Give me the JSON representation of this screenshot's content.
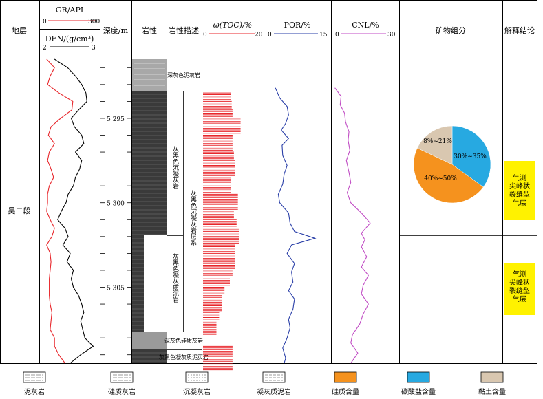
{
  "headers": {
    "formation": "地层",
    "gr_label": "GR/API",
    "gr_min": "0",
    "gr_max": "300",
    "den_label": "DEN/(g/cm³)",
    "den_min": "2",
    "den_max": "3",
    "depth": "深度/m",
    "lithology": "岩性",
    "description": "岩性描述",
    "toc_label": "ω(TOC)/%",
    "toc_min": "0",
    "toc_max": "20",
    "por_label": "POR/%",
    "por_min": "0",
    "por_max": "15",
    "cnl_label": "CNL/%",
    "cnl_min": "0",
    "cnl_max": "30",
    "mineral": "矿物组分",
    "conclusion": "解释结论"
  },
  "formation_name": "吴二段",
  "depth_ticks": [
    "5 295",
    "5 300",
    "5 305"
  ],
  "descriptions": {
    "d1": "深灰色泥灰岩",
    "d2": "灰黑色沉凝灰岩",
    "d3": "灰黑色凝灰质泥岩",
    "d4": "深灰色硅质灰岩",
    "d5": "灰黑色凝灰质泥页岩",
    "series": "灰黑色沉凝灰岩层系"
  },
  "conclusions": [
    "气测尖峰状裂缝型气层",
    "气测尖峰状裂缝型气层"
  ],
  "legend": [
    "泥灰岩",
    "硅质灰岩",
    "沉凝灰岩",
    "凝灰质泥岩",
    "硅质含量",
    "碳酸盐含量",
    "黏土含量"
  ],
  "colors": {
    "gr": "#e8262b",
    "den": "#000000",
    "toc": "#e8262b",
    "por": "#2a3fa8",
    "cnl": "#c04bc4",
    "silica": "#f5921e",
    "carbonate": "#27a9e1",
    "clay": "#d9c7b0",
    "conclusion": "#fff200"
  },
  "chart_data": {
    "type": "line",
    "depth_range": [
      5291.5,
      5309.5
    ],
    "gr": {
      "name": "GR/API",
      "range": [
        0,
        300
      ],
      "depth": [
        5291.5,
        5292,
        5292.5,
        5293,
        5293.5,
        5294,
        5294.5,
        5295,
        5295.5,
        5296,
        5296.5,
        5297,
        5297.5,
        5298,
        5298.5,
        5299,
        5299.5,
        5300,
        5300.5,
        5301,
        5301.5,
        5302,
        5302.5,
        5303,
        5303.5,
        5304,
        5304.5,
        5305,
        5305.5,
        5306,
        5306.5,
        5307,
        5307.5,
        5308,
        5308.5,
        5309,
        5309.5
      ],
      "values": [
        15,
        60,
        35,
        20,
        85,
        165,
        160,
        95,
        40,
        25,
        60,
        30,
        20,
        40,
        55,
        30,
        20,
        20,
        15,
        35,
        60,
        45,
        15,
        35,
        40,
        35,
        30,
        30,
        30,
        35,
        45,
        40,
        35,
        60,
        60,
        85,
        120
      ]
    },
    "den": {
      "name": "DEN/(g/cm³)",
      "range": [
        2,
        3
      ],
      "depth": [
        5291.5,
        5292,
        5292.5,
        5293,
        5293.5,
        5294,
        5294.5,
        5295,
        5295.5,
        5296,
        5296.5,
        5297,
        5297.5,
        5298,
        5298.5,
        5299,
        5299.5,
        5300,
        5300.5,
        5301,
        5301.5,
        5302,
        5302.5,
        5303,
        5303.5,
        5304,
        5304.5,
        5305,
        5305.5,
        5306,
        5306.5,
        5307,
        5307.5,
        5308,
        5308.5,
        5309,
        5309.5
      ],
      "values": [
        2.2,
        2.45,
        2.6,
        2.72,
        2.8,
        2.82,
        2.66,
        2.52,
        2.58,
        2.72,
        2.76,
        2.6,
        2.72,
        2.68,
        2.6,
        2.56,
        2.46,
        2.42,
        2.33,
        2.26,
        2.4,
        2.46,
        2.36,
        2.5,
        2.44,
        2.56,
        2.52,
        2.56,
        2.66,
        2.72,
        2.76,
        2.7,
        2.74,
        2.78,
        2.94,
        2.7,
        2.5
      ]
    },
    "toc": {
      "name": "ω(TOC)/%",
      "range": [
        0,
        20
      ],
      "depth": [
        5293.5,
        5294,
        5294.5,
        5295,
        5295.5,
        5296,
        5296.5,
        5297,
        5297.5,
        5298,
        5298.5,
        5299,
        5299.5,
        5300,
        5300.5,
        5301,
        5301.5,
        5302,
        5302.5,
        5303,
        5303.5,
        5304,
        5304.5,
        5305,
        5305.5,
        5306,
        5306.5,
        5307,
        5307.5,
        5308.5,
        5309,
        5309.5
      ],
      "values": [
        10.5,
        10.7,
        11,
        14,
        14,
        11,
        11,
        11.5,
        12,
        12,
        10.5,
        10.5,
        13,
        13,
        11.5,
        12.5,
        13.5,
        13.5,
        12,
        12,
        12,
        11,
        10,
        8,
        7,
        7,
        6,
        5,
        5,
        11,
        11,
        11
      ]
    },
    "por": {
      "name": "POR/%",
      "range": [
        0,
        15
      ],
      "depth": [
        5293.2,
        5293.8,
        5294.3,
        5294.8,
        5295.3,
        5295.7,
        5296.2,
        5296.6,
        5297.2,
        5297.8,
        5298.3,
        5298.9,
        5299.5,
        5300,
        5300.6,
        5301.2,
        5301.7,
        5302.1,
        5302.5,
        5303,
        5303.6,
        5304.1,
        5304.7,
        5305.2,
        5305.7,
        5306.3,
        5306.9,
        5307.4,
        5308,
        5308.6,
        5309.2,
        5309.5
      ],
      "values": [
        0.5,
        2,
        4.5,
        5,
        4,
        2.5,
        5,
        2.8,
        3,
        4.5,
        3.5,
        3,
        1.5,
        2,
        5,
        5.5,
        7,
        14,
        6,
        4.5,
        7,
        6,
        6.5,
        5,
        7,
        6.5,
        5,
        5.5,
        4.5,
        3,
        4,
        3.5
      ]
    },
    "cnl": {
      "name": "CNL/%",
      "range": [
        0,
        30
      ],
      "depth": [
        5293.2,
        5293.7,
        5294.2,
        5294.7,
        5295.2,
        5295.8,
        5296.3,
        5296.9,
        5297.5,
        5298.2,
        5298.8,
        5299.4,
        5300,
        5300.6,
        5301.2,
        5301.8,
        5302.2,
        5302.6,
        5303.2,
        5303.8,
        5304.3,
        5304.9,
        5305.4,
        5306,
        5306.6,
        5307.2,
        5307.8,
        5308.3,
        5308.9,
        5309.5
      ],
      "values": [
        1,
        4.5,
        4,
        6.5,
        7,
        9,
        8.5,
        9.5,
        7.5,
        9,
        10,
        8,
        10,
        16,
        21,
        16,
        18,
        16,
        19,
        16,
        20,
        17,
        16,
        20,
        17,
        15,
        11,
        10,
        14,
        10
      ]
    },
    "mineral_pie": {
      "type": "pie",
      "labels": [
        "30%~35%",
        "40%~50%",
        "8%~21%"
      ],
      "values": [
        35,
        47,
        18
      ],
      "legend": [
        "碳酸盐含量",
        "硅质含量",
        "黏土含量"
      ]
    }
  }
}
